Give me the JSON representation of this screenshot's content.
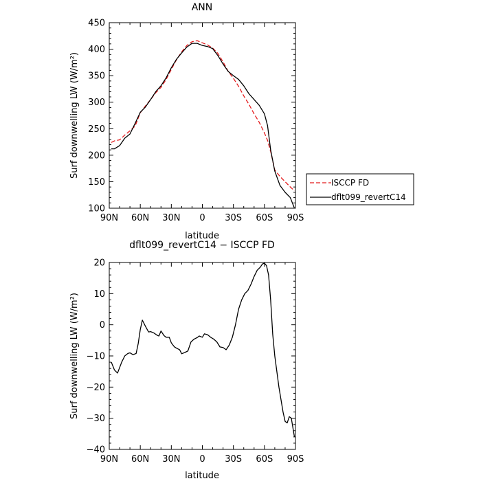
{
  "chart_data": [
    {
      "type": "line",
      "title": "ANN",
      "xlabel": "latitude",
      "ylabel": "Surf downwelling LW (W/m²)",
      "xlim": [
        90,
        -90
      ],
      "ylim": [
        100,
        450
      ],
      "x_ticks": [
        90,
        60,
        30,
        0,
        -30,
        -60,
        -90
      ],
      "x_tick_labels": [
        "90N",
        "60N",
        "30N",
        "0",
        "30S",
        "60S",
        "90S"
      ],
      "y_ticks": [
        100,
        150,
        200,
        250,
        300,
        350,
        400,
        450
      ],
      "y_tick_labels": [
        "100",
        "150",
        "200",
        "250",
        "300",
        "350",
        "400",
        "450"
      ],
      "legend": "outside-right",
      "series": [
        {
          "name": "ISCCP FD",
          "color": "#e41a1c",
          "dash": "dashed",
          "x": [
            88,
            85,
            80,
            75,
            70,
            65,
            60,
            55,
            50,
            45,
            40,
            35,
            30,
            25,
            20,
            15,
            10,
            5,
            0,
            -5,
            -10,
            -15,
            -20,
            -25,
            -30,
            -35,
            -40,
            -45,
            -50,
            -55,
            -60,
            -63,
            -66,
            -70,
            -75,
            -80,
            -85,
            -89
          ],
          "y": [
            224,
            227,
            229,
            238,
            246,
            255,
            280,
            293,
            305,
            318,
            328,
            343,
            362,
            380,
            395,
            407,
            414,
            416,
            412,
            408,
            402,
            392,
            376,
            358,
            345,
            330,
            312,
            296,
            278,
            262,
            242,
            228,
            207,
            172,
            160,
            150,
            140,
            133
          ]
        },
        {
          "name": "dflt099_revertC14",
          "color": "#000000",
          "dash": "solid",
          "x": [
            88,
            85,
            80,
            75,
            70,
            65,
            60,
            55,
            50,
            45,
            40,
            35,
            30,
            25,
            20,
            15,
            10,
            5,
            0,
            -5,
            -10,
            -15,
            -20,
            -25,
            -30,
            -35,
            -40,
            -45,
            -50,
            -55,
            -60,
            -63,
            -66,
            -70,
            -75,
            -80,
            -85,
            -89
          ],
          "y": [
            212,
            212,
            218,
            232,
            240,
            260,
            281,
            291,
            305,
            320,
            331,
            346,
            365,
            381,
            393,
            404,
            411,
            411,
            407,
            405,
            401,
            388,
            372,
            358,
            350,
            343,
            331,
            316,
            305,
            294,
            278,
            256,
            210,
            170,
            143,
            130,
            120,
            100
          ]
        }
      ]
    },
    {
      "type": "line",
      "title": "dflt099_revertC14 − ISCCP FD",
      "xlabel": "latitude",
      "ylabel": "Surf downwelling LW (W/m²)",
      "xlim": [
        90,
        -90
      ],
      "ylim": [
        -40,
        20
      ],
      "x_ticks": [
        90,
        60,
        30,
        0,
        -30,
        -60,
        -90
      ],
      "x_tick_labels": [
        "90N",
        "60N",
        "30N",
        "0",
        "30S",
        "60S",
        "90S"
      ],
      "y_ticks": [
        -40,
        -30,
        -20,
        -10,
        0,
        10,
        20
      ],
      "y_tick_labels": [
        "−40",
        "−30",
        "−20",
        "−10",
        "0",
        "10",
        "20"
      ],
      "series": [
        {
          "name": "",
          "color": "#000000",
          "dash": "solid",
          "x": [
            88,
            85,
            82,
            78,
            75,
            72,
            70,
            67,
            64,
            62,
            60,
            58,
            55,
            52,
            50,
            47,
            44,
            42,
            40,
            37,
            35,
            32,
            30,
            27,
            25,
            22,
            20,
            17,
            14,
            11,
            8,
            5,
            3,
            0,
            -2,
            -5,
            -8,
            -11,
            -14,
            -17,
            -20,
            -23,
            -26,
            -29,
            -32,
            -35,
            -38,
            -41,
            -44,
            -47,
            -50,
            -53,
            -56,
            -58,
            -60,
            -62,
            -64,
            -66,
            -68,
            -70,
            -72,
            -74,
            -76,
            -78,
            -80,
            -82,
            -84,
            -86,
            -89
          ],
          "y": [
            -12,
            -14.5,
            -15.5,
            -12,
            -10,
            -9.2,
            -9,
            -9.6,
            -9.2,
            -6,
            -1.5,
            1.5,
            -0.5,
            -2.3,
            -2.2,
            -2.6,
            -3.3,
            -3.6,
            -2,
            -3.5,
            -4,
            -4,
            -5.8,
            -7.1,
            -7.5,
            -8,
            -9.3,
            -8.9,
            -8.4,
            -5.5,
            -4.6,
            -4.1,
            -3.6,
            -4,
            -2.9,
            -3.2,
            -4,
            -4.6,
            -5.5,
            -7.1,
            -7.3,
            -8,
            -6.5,
            -4,
            0,
            5,
            8,
            10,
            11,
            13,
            15.5,
            17.5,
            18.5,
            19.5,
            19.8,
            19,
            16,
            8,
            -3,
            -10,
            -15,
            -20,
            -24,
            -28,
            -31,
            -31.5,
            -29.5,
            -30,
            -36
          ]
        }
      ]
    }
  ]
}
